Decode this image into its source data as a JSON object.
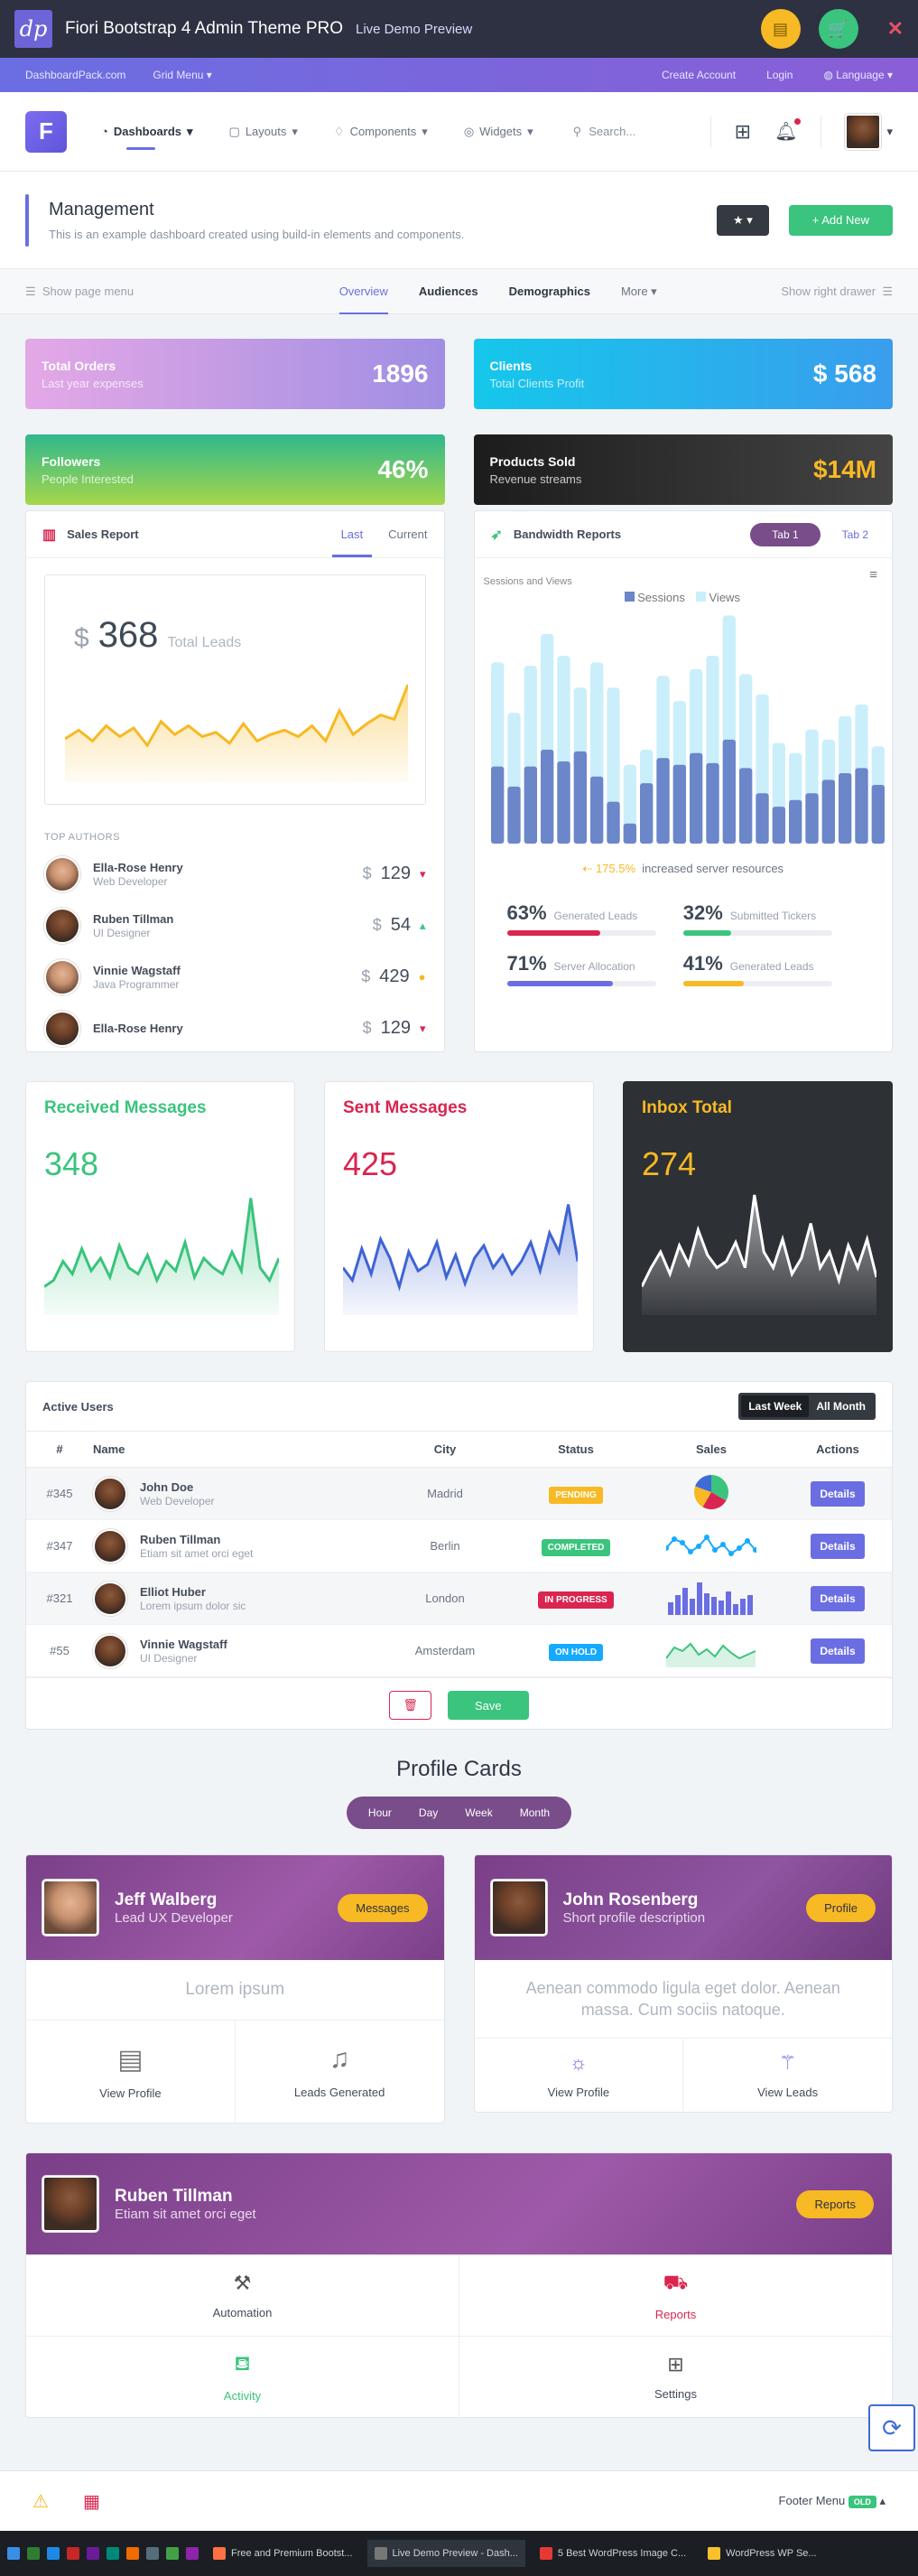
{
  "topbar": {
    "logo": "dp",
    "title": "Fiori Bootstrap 4 Admin Theme PRO",
    "subtitle": "Live Demo Preview",
    "close": "✕"
  },
  "bar2": {
    "site": "DashboardPack.com",
    "grid_menu": "Grid Menu",
    "create_account": "Create Account",
    "login": "Login",
    "language": "Language"
  },
  "header": {
    "logo_letter": "F",
    "nav": [
      "Dashboards",
      "Layouts",
      "Components",
      "Widgets"
    ],
    "search_placeholder": "Search..."
  },
  "pagehead": {
    "title": "Management",
    "description": "This is an example dashboard created using build-in elements and components.",
    "add_new": "Add New"
  },
  "subnav": {
    "left": "Show page menu",
    "tabs": [
      "Overview",
      "Audiences",
      "Demographics",
      "More"
    ],
    "right": "Show right drawer"
  },
  "stats": [
    {
      "label": "Total Orders",
      "sub": "Last year expenses",
      "value": "1896",
      "color": "#c28bd9"
    },
    {
      "label": "Clients",
      "sub": "Total Clients Profit",
      "value": "$ 568",
      "color": "#2ab8e8"
    },
    {
      "label": "Followers",
      "sub": "People Interested",
      "value": "46%",
      "color": "#3ac47d"
    },
    {
      "label": "Products Sold",
      "sub": "Revenue streams",
      "value": "$14M",
      "color": "#222"
    }
  ],
  "sales": {
    "title": "Sales Report",
    "tab_last": "Last",
    "tab_current": "Current",
    "currency": "$",
    "leads_value": "368",
    "leads_label": "Total Leads",
    "authors_title": "TOP AUTHORS",
    "authors": [
      {
        "name": "Ella-Rose Henry",
        "role": "Web Developer",
        "currency": "$",
        "value": "129",
        "trend": "▾"
      },
      {
        "name": "Ruben Tillman",
        "role": "UI Designer",
        "currency": "$",
        "value": "54",
        "trend": "▴"
      },
      {
        "name": "Vinnie Wagstaff",
        "role": "Java Programmer",
        "currency": "$",
        "value": "429",
        "trend": "●"
      },
      {
        "name": "Ella-Rose Henry",
        "role": "",
        "currency": "$",
        "value": "129",
        "trend": "▾"
      }
    ]
  },
  "bandwidth": {
    "title": "Bandwidth Reports",
    "tab1": "Tab 1",
    "tab2": "Tab 2",
    "chart_label": "Sessions and Views",
    "legend_sessions": "Sessions",
    "legend_views": "Views",
    "increase": "175.5%",
    "increase_label": "increased server resources",
    "kpis": [
      {
        "value": "63%",
        "label": "Generated Leads",
        "progress": 0.63,
        "color": "#d92550"
      },
      {
        "value": "32%",
        "label": "Submitted Tickers",
        "progress": 0.32,
        "color": "#3ac47d"
      },
      {
        "value": "71%",
        "label": "Server Allocation",
        "progress": 0.71,
        "color": "#6a6ee2"
      },
      {
        "value": "41%",
        "label": "Generated Leads",
        "progress": 0.41,
        "color": "#f7b924"
      }
    ]
  },
  "chart_data": [
    {
      "type": "bar",
      "title": "Sessions and Views",
      "series": [
        {
          "name": "Sessions",
          "values": [
            46,
            34,
            46,
            56,
            49,
            55,
            40,
            25,
            12,
            36,
            51,
            47,
            54,
            48,
            62,
            45,
            30,
            22,
            26,
            30,
            38,
            42,
            45,
            35
          ]
        },
        {
          "name": "Views",
          "values": [
            108,
            78,
            106,
            125,
            112,
            93,
            108,
            93,
            47,
            56,
            100,
            85,
            104,
            112,
            136,
            101,
            89,
            60,
            54,
            68,
            62,
            76,
            83,
            58
          ]
        }
      ],
      "color_sessions": "#6b86c9",
      "color_views": "#cbeefb"
    },
    {
      "type": "area",
      "title": "Total Leads",
      "values": [
        20,
        24,
        19,
        26,
        21,
        25,
        17,
        28,
        22,
        26,
        21,
        23,
        18,
        27,
        19,
        22,
        24,
        21,
        26,
        19,
        33,
        22,
        27,
        31,
        29,
        45
      ],
      "color": "#f7b924"
    },
    {
      "type": "area",
      "title": "Received Messages",
      "values": [
        18,
        22,
        34,
        26,
        42,
        28,
        36,
        24,
        44,
        30,
        26,
        38,
        22,
        34,
        28,
        46,
        24,
        36,
        30,
        26,
        40,
        28,
        74,
        30,
        22,
        36
      ],
      "color": "#3ac47d"
    },
    {
      "type": "area",
      "title": "Sent Messages",
      "values": [
        30,
        22,
        42,
        26,
        48,
        36,
        18,
        40,
        28,
        32,
        46,
        24,
        38,
        20,
        36,
        44,
        30,
        38,
        26,
        34,
        46,
        28,
        52,
        40,
        70,
        34
      ],
      "color": "#3f64d4"
    },
    {
      "type": "area",
      "title": "Inbox Total",
      "values": [
        18,
        30,
        40,
        26,
        44,
        32,
        54,
        38,
        30,
        34,
        46,
        30,
        76,
        40,
        30,
        48,
        26,
        36,
        58,
        30,
        40,
        22,
        44,
        30,
        48,
        24
      ],
      "color": "#ffffff"
    }
  ],
  "messages": [
    {
      "title": "Received Messages",
      "value": "348",
      "color": "#3ac47d"
    },
    {
      "title": "Sent Messages",
      "value": "425",
      "color": "#d92550"
    },
    {
      "title": "Inbox Total",
      "value": "274",
      "color": "#f7b924"
    }
  ],
  "users": {
    "title": "Active Users",
    "last_week": "Last Week",
    "all_month": "All Month",
    "headers": [
      "#",
      "Name",
      "City",
      "Status",
      "Sales",
      "Actions"
    ],
    "rows": [
      {
        "id": "#345",
        "name": "John Doe",
        "sub": "Web Developer",
        "city": "Madrid",
        "status": "PENDING",
        "status_color": "#f7b924",
        "action": "Details"
      },
      {
        "id": "#347",
        "name": "Ruben Tillman",
        "sub": "Etiam sit amet orci eget",
        "city": "Berlin",
        "status": "COMPLETED",
        "status_color": "#3ac47d",
        "action": "Details"
      },
      {
        "id": "#321",
        "name": "Elliot Huber",
        "sub": "Lorem ipsum dolor sic",
        "city": "London",
        "status": "IN PROGRESS",
        "status_color": "#d92550",
        "action": "Details"
      },
      {
        "id": "#55",
        "name": "Vinnie Wagstaff",
        "sub": "UI Designer",
        "city": "Amsterdam",
        "status": "ON HOLD",
        "status_color": "#16aaff",
        "action": "Details"
      }
    ],
    "save": "Save"
  },
  "profiles": {
    "heading": "Profile Cards",
    "periods": [
      "Hour",
      "Day",
      "Week",
      "Month"
    ],
    "cards": [
      {
        "name": "Jeff Walberg",
        "role": "Lead UX Developer",
        "button": "Messages",
        "body": "Lorem ipsum",
        "a1": "View Profile",
        "a2": "Leads Generated"
      },
      {
        "name": "John Rosenberg",
        "role": "Short profile description",
        "button": "Profile",
        "body": "Aenean commodo ligula eget dolor. Aenean massa. Cum sociis natoque.",
        "a1": "View Profile",
        "a2": "View Leads"
      }
    ],
    "wide": {
      "name": "Ruben Tillman",
      "role": "Etiam sit amet orci eget",
      "button": "Reports",
      "items": [
        "Automation",
        "Reports",
        "Activity",
        "Settings"
      ]
    }
  },
  "footer": {
    "menu": "Footer Menu",
    "badge": "OLD"
  },
  "taskbar": [
    "Free and Premium Bootst...",
    "Live Demo Preview - Dash...",
    "5 Best WordPress Image C...",
    "WordPress WP Se..."
  ]
}
